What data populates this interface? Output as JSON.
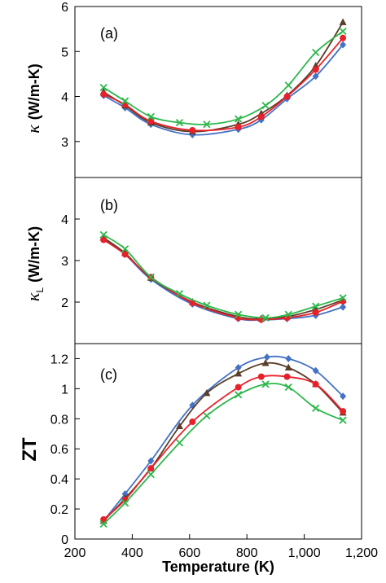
{
  "chart_data": [
    {
      "type": "line",
      "panel_label": "(a)",
      "ylabel": "κ (W/m-K)",
      "ylabel_symbol": "κ",
      "ylabel_sub": "",
      "ylabel_unit": "(W/m-K)",
      "ylim": [
        2.2,
        6
      ],
      "yticks": [
        3,
        4,
        5,
        6
      ],
      "ytick_labels": [
        "3",
        "4",
        "5",
        "6"
      ],
      "grid": false,
      "series": [
        {
          "color": "#4472C4",
          "marker": "diamond",
          "x": [
            300,
            375,
            465,
            610,
            770,
            850,
            940,
            1040,
            1135
          ],
          "y": [
            4.02,
            3.75,
            3.38,
            3.15,
            3.27,
            3.48,
            3.95,
            4.45,
            5.15
          ]
        },
        {
          "color": "#5B3E29",
          "marker": "triangle",
          "x": [
            300,
            375,
            465,
            610,
            770,
            850,
            940,
            1040,
            1135
          ],
          "y": [
            4.1,
            3.8,
            3.42,
            3.22,
            3.38,
            3.62,
            4.02,
            4.68,
            5.65
          ]
        },
        {
          "color": "#E8202A",
          "marker": "circle",
          "x": [
            300,
            375,
            465,
            610,
            770,
            850,
            940,
            1040,
            1135
          ],
          "y": [
            4.05,
            3.82,
            3.45,
            3.25,
            3.32,
            3.55,
            4.0,
            4.6,
            5.3
          ]
        },
        {
          "color": "#2DB84B",
          "marker": "x",
          "x": [
            300,
            375,
            465,
            565,
            660,
            770,
            865,
            945,
            1040,
            1135
          ],
          "y": [
            4.2,
            3.9,
            3.55,
            3.42,
            3.38,
            3.5,
            3.8,
            4.25,
            4.98,
            5.45
          ]
        }
      ]
    },
    {
      "type": "line",
      "panel_label": "(b)",
      "ylabel": "κL (W/m-K)",
      "ylabel_symbol": "κ",
      "ylabel_sub": "L",
      "ylabel_unit": "(W/m-K)",
      "ylim": [
        1,
        5
      ],
      "yticks": [
        2,
        3,
        4
      ],
      "ytick_labels": [
        "2",
        "3",
        "4"
      ],
      "grid": false,
      "series": [
        {
          "color": "#4472C4",
          "marker": "diamond",
          "x": [
            300,
            375,
            465,
            610,
            770,
            850,
            940,
            1040,
            1135
          ],
          "y": [
            3.52,
            3.15,
            2.55,
            1.95,
            1.6,
            1.57,
            1.6,
            1.68,
            1.88
          ]
        },
        {
          "color": "#5B3E29",
          "marker": "triangle",
          "x": [
            300,
            375,
            465,
            610,
            770,
            850,
            940,
            1040,
            1135
          ],
          "y": [
            3.55,
            3.18,
            2.58,
            2.0,
            1.65,
            1.6,
            1.65,
            1.82,
            2.05
          ]
        },
        {
          "color": "#E8202A",
          "marker": "circle",
          "x": [
            300,
            375,
            465,
            610,
            770,
            850,
            940,
            1040,
            1135
          ],
          "y": [
            3.5,
            3.15,
            2.6,
            1.98,
            1.62,
            1.58,
            1.62,
            1.75,
            2.02
          ]
        },
        {
          "color": "#2DB84B",
          "marker": "x",
          "x": [
            300,
            375,
            465,
            565,
            660,
            770,
            865,
            945,
            1040,
            1135
          ],
          "y": [
            3.62,
            3.28,
            2.6,
            2.2,
            1.92,
            1.7,
            1.62,
            1.7,
            1.9,
            2.1
          ]
        }
      ]
    },
    {
      "type": "line",
      "panel_label": "(c)",
      "ylabel": "ZT",
      "xlabel": "Temperature (K)",
      "xlim": [
        200,
        1200
      ],
      "xticks": [
        200,
        400,
        600,
        800,
        1000,
        1200
      ],
      "xtick_labels": [
        "200",
        "400",
        "600",
        "800",
        "1,000",
        "1,200"
      ],
      "ylim": [
        0,
        1.3
      ],
      "yticks": [
        0,
        0.2,
        0.4,
        0.6,
        0.8,
        1,
        1.2
      ],
      "ytick_labels": [
        "0",
        "0.2",
        "0.4",
        "0.6",
        "0.8",
        "1",
        "1.2"
      ],
      "grid": false,
      "series": [
        {
          "color": "#4472C4",
          "marker": "diamond",
          "x": [
            300,
            375,
            465,
            610,
            770,
            870,
            945,
            1040,
            1135
          ],
          "y": [
            0.12,
            0.3,
            0.52,
            0.89,
            1.14,
            1.21,
            1.2,
            1.12,
            0.95
          ]
        },
        {
          "color": "#5B3E29",
          "marker": "triangle",
          "x": [
            300,
            375,
            465,
            565,
            660,
            770,
            865,
            945,
            1040,
            1135
          ],
          "y": [
            0.12,
            0.27,
            0.47,
            0.75,
            0.97,
            1.1,
            1.17,
            1.14,
            1.03,
            0.84
          ]
        },
        {
          "color": "#E8202A",
          "marker": "circle",
          "x": [
            300,
            375,
            465,
            610,
            770,
            850,
            940,
            1040,
            1135
          ],
          "y": [
            0.13,
            0.26,
            0.47,
            0.78,
            1.01,
            1.08,
            1.08,
            1.03,
            0.85
          ]
        },
        {
          "color": "#2DB84B",
          "marker": "x",
          "x": [
            300,
            375,
            465,
            565,
            660,
            770,
            865,
            945,
            1040,
            1135
          ],
          "y": [
            0.1,
            0.24,
            0.43,
            0.64,
            0.82,
            0.96,
            1.03,
            1.01,
            0.87,
            0.79
          ]
        }
      ]
    }
  ]
}
